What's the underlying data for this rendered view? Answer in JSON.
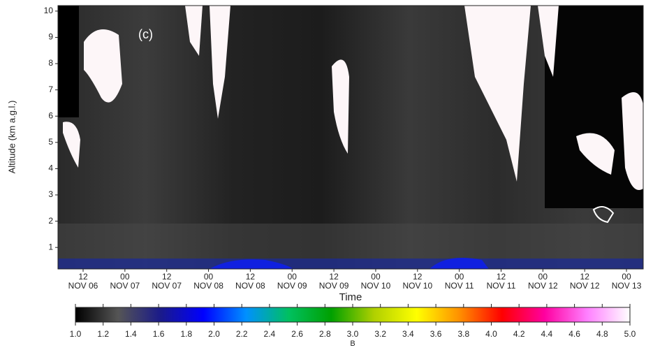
{
  "chart_data": {
    "type": "heatmap",
    "annotation": "(c)",
    "ylabel": "Altitude (km a.g.l.)",
    "xlabel": "Time",
    "ylim": [
      0.18,
      10.21
    ],
    "yticks": [
      1,
      2,
      3,
      4,
      5,
      6,
      7,
      8,
      9,
      10
    ],
    "xticks": [
      {
        "hour": "12",
        "date": "NOV 06"
      },
      {
        "hour": "00",
        "date": "NOV 07"
      },
      {
        "hour": "12",
        "date": "NOV 07"
      },
      {
        "hour": "00",
        "date": "NOV 08"
      },
      {
        "hour": "12",
        "date": "NOV 08"
      },
      {
        "hour": "00",
        "date": "NOV 09"
      },
      {
        "hour": "12",
        "date": "NOV 09"
      },
      {
        "hour": "00",
        "date": "NOV 10"
      },
      {
        "hour": "12",
        "date": "NOV 10"
      },
      {
        "hour": "00",
        "date": "NOV 11"
      },
      {
        "hour": "12",
        "date": "NOV 11"
      },
      {
        "hour": "00",
        "date": "NOV 12"
      },
      {
        "hour": "12",
        "date": "NOV 12"
      },
      {
        "hour": "00",
        "date": "NOV 13"
      }
    ],
    "colorbar": {
      "label": "B",
      "lim": [
        1.0,
        5.0
      ],
      "colors": [
        "#000000",
        "#555555",
        "#1a1a8a",
        "#0000ff",
        "#0090ff",
        "#00c060",
        "#00a000",
        "#b0d000",
        "#ffff00",
        "#ff9000",
        "#ff0000",
        "#ff00a0",
        "#ff80ff",
        "#ffffff"
      ],
      "ticks": [
        {
          "value": 1.0,
          "label": "1.0"
        },
        {
          "value": 1.2,
          "label": "1.2"
        },
        {
          "value": 1.4,
          "label": "1.4"
        },
        {
          "value": 1.6,
          "label": "1.6"
        },
        {
          "value": 1.8,
          "label": "1.8"
        },
        {
          "value": 2.0,
          "label": "2.0"
        },
        {
          "value": 2.2,
          "label": "2.2"
        },
        {
          "value": 2.4,
          "label": "2.4"
        },
        {
          "value": 2.6,
          "label": "2.6"
        },
        {
          "value": 2.8,
          "label": "2.8"
        },
        {
          "value": 3.0,
          "label": "3.0"
        },
        {
          "value": 3.2,
          "label": "3.2"
        },
        {
          "value": 3.4,
          "label": "3.4"
        },
        {
          "value": 3.6,
          "label": "3.6"
        },
        {
          "value": 3.8,
          "label": "3.8"
        },
        {
          "value": 4.0,
          "label": "4.0"
        },
        {
          "value": 4.2,
          "label": "4.2"
        },
        {
          "value": 4.4,
          "label": "4.4"
        },
        {
          "value": 4.6,
          "label": "4.6"
        },
        {
          "value": 4.8,
          "label": "4.8"
        },
        {
          "value": 5.0,
          "label": "5.0"
        }
      ]
    }
  }
}
